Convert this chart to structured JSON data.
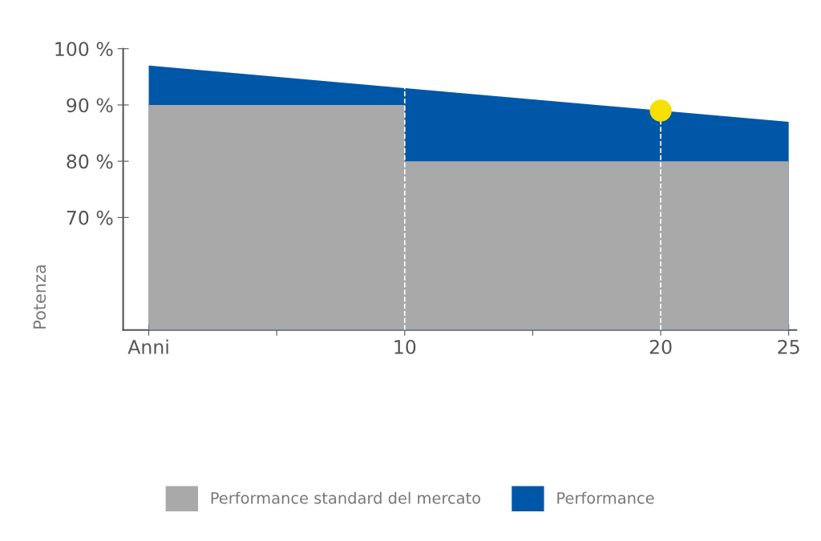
{
  "chart_data": {
    "type": "area",
    "ylabel": "Potenza",
    "x": [
      0,
      10,
      10,
      25
    ],
    "series": [
      {
        "name": "Performance standard del mercato",
        "color": "#a9a9a9",
        "values": [
          90,
          90,
          80,
          80
        ]
      },
      {
        "name": "Performance",
        "color": "#0057a8",
        "values": [
          97,
          93,
          93,
          87
        ]
      },
      {
        "type": "scatter",
        "marker": "circle",
        "color": "#f5e000",
        "x": [
          20
        ],
        "values": [
          89
        ]
      }
    ],
    "xlim": [
      -1,
      25.3
    ],
    "xticks": [
      {
        "value": 0,
        "label": "Anni"
      },
      {
        "value": 5,
        "label": null
      },
      10,
      {
        "value": 15,
        "label": null
      },
      20,
      25
    ],
    "ylim": [
      50,
      100
    ],
    "yticks": [
      {
        "value": 70,
        "label": "70 %"
      },
      {
        "value": 80,
        "label": "80 %"
      },
      {
        "value": 90,
        "label": "90 %"
      },
      {
        "value": 100,
        "label": "100 %"
      }
    ],
    "ref_lines": [
      {
        "axis": "x",
        "value": 10,
        "color": "#ffffff",
        "line_style": "dashed"
      },
      {
        "axis": "x",
        "value": 20,
        "color": "#ffffff",
        "line_style": "dashed"
      }
    ],
    "grid": false,
    "legend": "bottom"
  }
}
